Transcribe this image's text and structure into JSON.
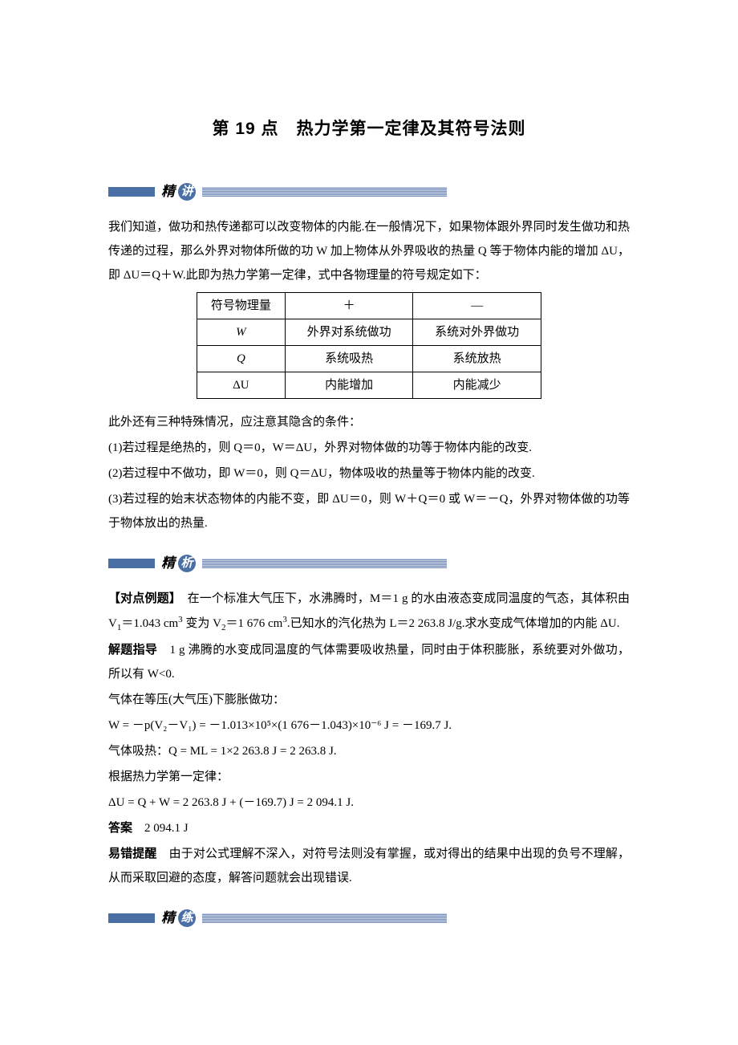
{
  "title": "第 19 点　热力学第一定律及其符号法则",
  "section_heads": {
    "jing": "精",
    "jiang": "讲",
    "xi": "析",
    "lian": "练"
  },
  "intro_p1": "我们知道，做功和热传递都可以改变物体的内能.在一般情况下，如果物体跟外界同时发生做功和热传递的过程，那么外界对物体所做的功 W 加上物体从外界吸收的热量 Q 等于物体内能的增加 ΔU，即 ΔU＝Q＋W.此即为热力学第一定律，式中各物理量的符号规定如下：",
  "table": {
    "header": [
      "符号物理量",
      "＋",
      "—"
    ],
    "rows": [
      [
        "W",
        "外界对系统做功",
        "系统对外界做功"
      ],
      [
        "Q",
        "系统吸热",
        "系统放热"
      ],
      [
        "ΔU",
        "内能增加",
        "内能减少"
      ]
    ],
    "col_widths": [
      "110px",
      "160px",
      "160px"
    ],
    "first_col_italic": [
      false,
      true,
      true,
      false
    ]
  },
  "extra_intro": "此外还有三种特殊情况，应注意其隐含的条件：",
  "cases": [
    "(1)若过程是绝热的，则 Q＝0，W＝ΔU，外界对物体做的功等于物体内能的改变.",
    "(2)若过程中不做功，即 W＝0，则 Q＝ΔU，物体吸收的热量等于物体内能的改变.",
    "(3)若过程的始末状态物体的内能不变，即 ΔU＝0，则 W＋Q＝0 或 W＝－Q，外界对物体做的功等于物体放出的热量."
  ],
  "example_label": "【对点例题】",
  "example_text_1": "　在一个标准大气压下，水沸腾时，M＝1 g 的水由液态变成同温度的气态，其体积由 V",
  "example_v1_sub": "1",
  "example_v1_val": "＝1.043 cm",
  "example_cm3_sup": "3",
  "example_mid": " 变为 V",
  "example_v2_sub": "2",
  "example_v2_val": "＝1 676 cm",
  "example_tail": ".已知水的汽化热为 L＝2 263.8 J/g.求水变成气体增加的内能 ΔU.",
  "guide_label": "解题指导",
  "guide_text": "　1 g 沸腾的水变成同温度的气体需要吸收热量，同时由于体积膨胀，系统要对外做功，所以有 W<0.",
  "calc_lines": [
    "气体在等压(大气压)下膨胀做功：",
    "W = －p(V₂－V₁) = －1.013×10⁵×(1 676－1.043)×10⁻⁶ J = －169.7 J.",
    "气体吸热：Q = ML = 1×2 263.8 J = 2 263.8 J.",
    "根据热力学第一定律：",
    "ΔU = Q + W = 2 263.8 J + (－169.7) J = 2 094.1 J."
  ],
  "answer_label": "答案",
  "answer_text": "　2 094.1 J",
  "warn_label": "易错提醒",
  "warn_text": "　由于对公式理解不深入，对符号法则没有掌握，或对得出的结果中出现的负号不理解，从而采取回避的态度，解答问题就会出现错误.",
  "colors": {
    "blue": "#4a6fa5",
    "hatch_light": "#c8d2e6",
    "hatch_dark": "#7a8fb5"
  }
}
